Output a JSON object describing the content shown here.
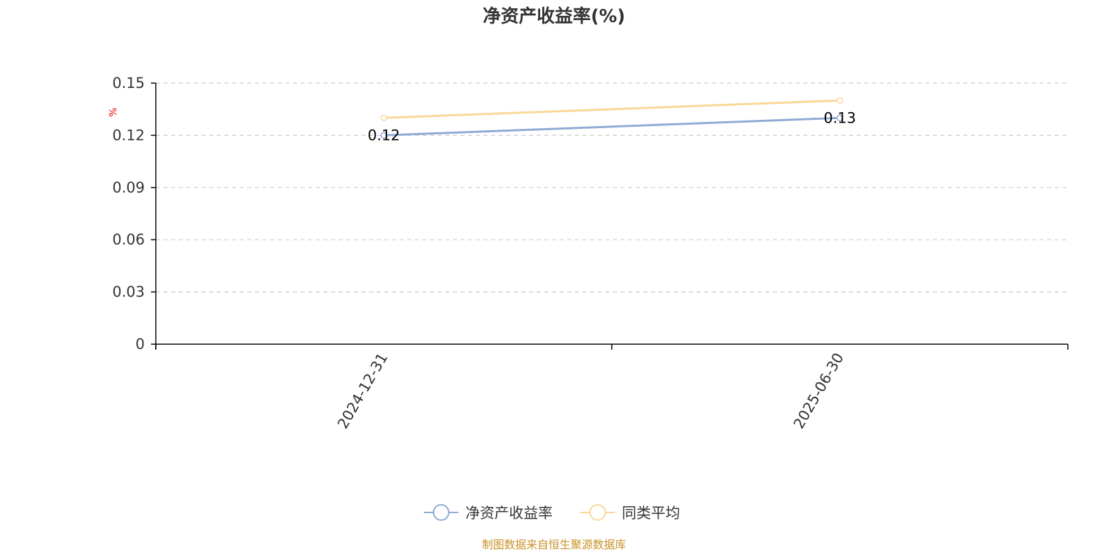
{
  "chart_data": {
    "type": "line",
    "title": "净资产收益率(%)",
    "ylabel": "%",
    "categories": [
      "2024-12-31",
      "2025-06-30"
    ],
    "ylim": [
      0,
      0.15
    ],
    "yticks": [
      "0",
      "0.03",
      "0.06",
      "0.09",
      "0.12",
      "0.15"
    ],
    "grid": true,
    "legend_position": "bottom",
    "series": [
      {
        "name": "净资产收益率",
        "values": [
          0.12,
          0.13
        ],
        "color": "#8eaad6",
        "data_labels": [
          "0.12",
          "0.13"
        ]
      },
      {
        "name": "同类平均",
        "values": [
          0.13,
          0.14
        ],
        "color": "#fad896"
      }
    ]
  },
  "source_note": "制图数据来自恒生聚源数据库",
  "colors": {
    "unit_label": "#e60000",
    "source_note": "#c9922a",
    "axis": "#000000",
    "grid": "#cccccc"
  }
}
